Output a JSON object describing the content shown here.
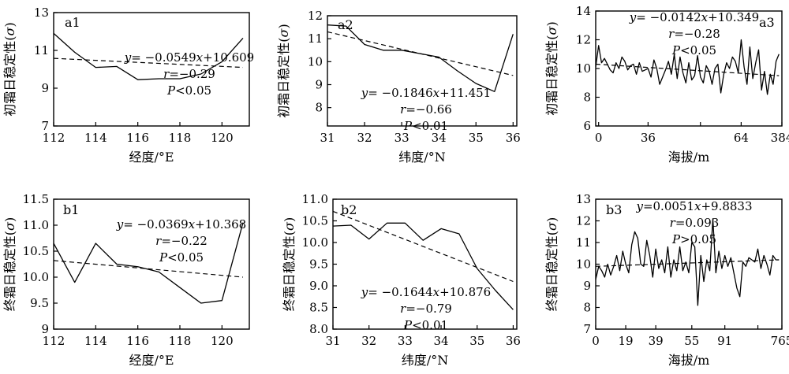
{
  "chart_data": [
    {
      "id": "a1",
      "type": "line",
      "panel_label": "a1",
      "ylabel": "初霜日稳定性(σ)",
      "xlabel": "经度/°E",
      "xlim": [
        112,
        121.3
      ],
      "ylim": [
        7,
        13
      ],
      "xticks": [
        112,
        114,
        116,
        118,
        120
      ],
      "xtick_labels": [
        "112",
        "114",
        "116",
        "118",
        "120"
      ],
      "yticks": [
        7,
        9,
        11,
        13
      ],
      "ytick_labels": [
        "7",
        "9",
        "11",
        "13"
      ],
      "series": [
        {
          "kind": "observed",
          "style": "solid",
          "x": [
            112,
            113,
            114,
            115,
            116,
            117,
            118,
            119,
            120,
            121
          ],
          "y": [
            11.9,
            10.9,
            10.1,
            10.15,
            9.45,
            9.5,
            9.5,
            9.75,
            10.4,
            11.65
          ]
        },
        {
          "kind": "trend",
          "style": "dashed",
          "x": [
            112,
            121
          ],
          "y": [
            10.58,
            10.1
          ]
        }
      ],
      "annotation": {
        "equation": "y= −0.0549x+10.609",
        "r": "r=−0.29",
        "p": "P<0.05"
      }
    },
    {
      "id": "a2",
      "type": "line",
      "panel_label": "a2",
      "ylabel": "初霜日稳定性(σ)",
      "xlabel": "纬度/°N",
      "xlim": [
        31,
        36.1
      ],
      "ylim": [
        7.2,
        12
      ],
      "xticks": [
        31,
        32,
        33,
        34,
        35,
        36
      ],
      "xtick_labels": [
        "31",
        "32",
        "33",
        "34",
        "35",
        "36"
      ],
      "yticks": [
        8,
        9,
        10,
        11,
        12
      ],
      "ytick_labels": [
        "8",
        "9",
        "10",
        "11",
        "12"
      ],
      "series": [
        {
          "kind": "observed",
          "style": "solid",
          "x": [
            31,
            31.5,
            32,
            32.5,
            33,
            33.5,
            34,
            34.5,
            35,
            35.5,
            36
          ],
          "y": [
            11.6,
            11.55,
            10.75,
            10.5,
            10.5,
            10.35,
            10.2,
            9.6,
            9.05,
            8.7,
            11.2
          ]
        },
        {
          "kind": "trend",
          "style": "dashed",
          "x": [
            31,
            36
          ],
          "y": [
            11.3,
            9.4
          ]
        }
      ],
      "annotation": {
        "equation": "y= −0.1846x+11.451",
        "r": "r=−0.66",
        "p": "P<0.01"
      }
    },
    {
      "id": "a3",
      "type": "line",
      "panel_label": "a3",
      "ylabel": "初霜日稳定性(σ)",
      "xlabel": "海拔/m",
      "xlim": [
        0,
        64
      ],
      "ylim": [
        6,
        14
      ],
      "xticks": [
        1,
        18,
        36,
        50,
        64
      ],
      "xtick_labels": [
        "0",
        "36",
        "64",
        "384"
      ],
      "xtick_label_positions": [
        1,
        18,
        50,
        64
      ],
      "yticks": [
        6,
        8,
        10,
        12,
        14
      ],
      "ytick_labels": [
        "6",
        "8",
        "10",
        "12",
        "14"
      ],
      "series": [
        {
          "kind": "observed",
          "style": "solid",
          "x": [
            0,
            1,
            2,
            3,
            4,
            5,
            6,
            7,
            8,
            9,
            10,
            11,
            12,
            13,
            14,
            15,
            16,
            17,
            18,
            19,
            20,
            21,
            22,
            23,
            24,
            25,
            26,
            27,
            28,
            29,
            30,
            31,
            32,
            33,
            34,
            35,
            36,
            37,
            38,
            39,
            40,
            41,
            42,
            43,
            44,
            45,
            46,
            47,
            48,
            49,
            50,
            51,
            52,
            53,
            54,
            55,
            56,
            57,
            58,
            59,
            60,
            61,
            62,
            63
          ],
          "y": [
            10.1,
            11.6,
            10.4,
            10.7,
            10.3,
            9.9,
            9.7,
            10.4,
            10.0,
            10.8,
            10.5,
            9.9,
            10.2,
            10.3,
            9.6,
            10.4,
            9.8,
            9.9,
            10.0,
            9.4,
            10.6,
            10.0,
            8.9,
            9.4,
            9.9,
            10.5,
            9.6,
            11.0,
            9.3,
            10.8,
            9.7,
            9.0,
            10.4,
            9.2,
            9.5,
            10.9,
            9.4,
            9.0,
            10.2,
            9.8,
            8.9,
            10.0,
            10.3,
            8.3,
            9.6,
            10.4,
            10.0,
            10.8,
            10.5,
            9.7,
            12.0,
            10.1,
            8.9,
            11.5,
            9.3,
            10.4,
            11.3,
            8.5,
            9.8,
            8.2,
            9.6,
            8.9,
            10.5,
            11.0
          ]
        },
        {
          "kind": "trend",
          "style": "dashed",
          "x": [
            0,
            63
          ],
          "y": [
            10.3,
            9.5
          ]
        }
      ],
      "annotation": {
        "equation": "y= −0.0142x+10.349",
        "r": "r=−0.28",
        "p": "P<0.05"
      }
    },
    {
      "id": "b1",
      "type": "line",
      "panel_label": "b1",
      "ylabel": "终霜日稳定性(σ)",
      "xlabel": "经度/°E",
      "xlim": [
        112,
        121.3
      ],
      "ylim": [
        9,
        11.5
      ],
      "xticks": [
        112,
        114,
        116,
        118,
        120
      ],
      "xtick_labels": [
        "112",
        "114",
        "116",
        "118",
        "120"
      ],
      "yticks": [
        9,
        9.5,
        10,
        10.5,
        11,
        11.5
      ],
      "ytick_labels": [
        "9",
        "9.5",
        "10.0",
        "10.5",
        "11.0",
        "11.5"
      ],
      "series": [
        {
          "kind": "observed",
          "style": "solid",
          "x": [
            112,
            113,
            114,
            115,
            116,
            117,
            118,
            119,
            120,
            121
          ],
          "y": [
            10.65,
            9.9,
            10.65,
            10.25,
            10.2,
            10.1,
            9.8,
            9.5,
            9.55,
            11.05
          ]
        },
        {
          "kind": "trend",
          "style": "dashed",
          "x": [
            112,
            121
          ],
          "y": [
            10.32,
            10.0
          ]
        }
      ],
      "annotation": {
        "equation": "y= −0.0369x+10.368",
        "r": "r=−0.22",
        "p": "P<0.05"
      }
    },
    {
      "id": "b2",
      "type": "line",
      "panel_label": "b2",
      "ylabel": "终霜日稳定性(σ)",
      "xlabel": "纬度/°N",
      "xlim": [
        31,
        36.1
      ],
      "ylim": [
        8,
        11
      ],
      "xticks": [
        31,
        32,
        33,
        34,
        35,
        36
      ],
      "xtick_labels": [
        "31",
        "32",
        "33",
        "34",
        "35",
        "36"
      ],
      "yticks": [
        8,
        8.5,
        9,
        9.5,
        10,
        10.5,
        11
      ],
      "ytick_labels": [
        "8.0",
        "8.5",
        "9.0",
        "9.5",
        "10.0",
        "10.5",
        "11.0"
      ],
      "series": [
        {
          "kind": "observed",
          "style": "solid",
          "x": [
            31,
            31.5,
            32,
            32.5,
            33,
            33.5,
            34,
            34.5,
            35,
            35.5,
            36
          ],
          "y": [
            10.38,
            10.4,
            10.08,
            10.45,
            10.45,
            10.05,
            10.32,
            10.2,
            9.4,
            8.9,
            8.45
          ]
        },
        {
          "kind": "trend",
          "style": "dashed",
          "x": [
            31,
            36
          ],
          "y": [
            10.72,
            9.1
          ]
        }
      ],
      "annotation": {
        "equation": "y= −0.1644x+10.876",
        "r": "r=−0.79",
        "p": "P<0.01"
      }
    },
    {
      "id": "b3",
      "type": "line",
      "panel_label": "b3",
      "ylabel": "终霜日稳定性(σ)",
      "xlabel": "海拔/m",
      "xlim": [
        0,
        62
      ],
      "ylim": [
        7,
        13
      ],
      "xticks": [
        0,
        10,
        20,
        32,
        43,
        54,
        62
      ],
      "xtick_labels": [
        "0",
        "19",
        "39",
        "55",
        "91",
        "765"
      ],
      "xtick_label_positions": [
        0,
        10,
        20,
        32,
        43,
        62
      ],
      "yticks": [
        7,
        8,
        9,
        10,
        11,
        12,
        13
      ],
      "ytick_labels": [
        "7",
        "8",
        "9",
        "10",
        "11",
        "12",
        "13"
      ],
      "series": [
        {
          "kind": "observed",
          "style": "solid",
          "x": [
            0,
            1,
            2,
            3,
            4,
            5,
            6,
            7,
            8,
            9,
            10,
            11,
            12,
            13,
            14,
            15,
            16,
            17,
            18,
            19,
            20,
            21,
            22,
            23,
            24,
            25,
            26,
            27,
            28,
            29,
            30,
            31,
            32,
            33,
            34,
            35,
            36,
            37,
            38,
            39,
            40,
            41,
            42,
            43,
            44,
            45,
            46,
            47,
            48,
            49,
            50,
            51,
            52,
            53,
            54,
            55,
            56,
            57,
            58,
            59,
            60,
            61
          ],
          "y": [
            9.3,
            9.9,
            9.7,
            9.4,
            10.0,
            9.5,
            9.9,
            10.4,
            9.7,
            10.6,
            10.0,
            9.6,
            10.9,
            11.5,
            11.2,
            10.0,
            9.9,
            11.1,
            10.4,
            9.4,
            10.7,
            9.8,
            10.2,
            9.6,
            10.8,
            9.4,
            10.2,
            9.7,
            10.8,
            9.7,
            10.1,
            9.6,
            11.0,
            10.8,
            8.1,
            10.4,
            9.2,
            10.2,
            9.7,
            12.1,
            9.6,
            10.6,
            9.8,
            10.4,
            9.9,
            10.3,
            9.6,
            8.9,
            8.5,
            10.1,
            9.9,
            10.3,
            10.2,
            10.1,
            10.7,
            9.8,
            10.4,
            10.0,
            9.5,
            10.4,
            10.2,
            10.2
          ]
        },
        {
          "kind": "trend",
          "style": "dashed",
          "x": [
            0,
            61
          ],
          "y": [
            9.9,
            10.2
          ]
        }
      ],
      "annotation": {
        "equation": "y=0.0051x+9.8833",
        "r": "r=0.093",
        "p": "P>0.05"
      }
    }
  ]
}
